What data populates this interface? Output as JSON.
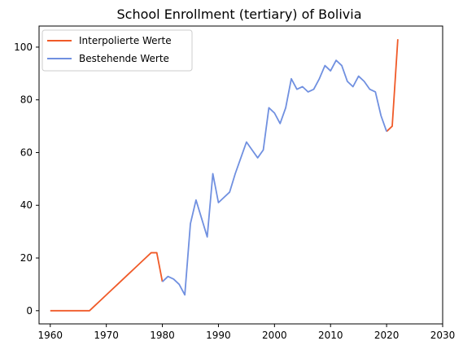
{
  "chart_data": {
    "type": "line",
    "title": "School Enrollment (tertiary) of Bolivia",
    "xlabel": "",
    "ylabel": "",
    "xlim": [
      1958,
      2030
    ],
    "ylim": [
      -5,
      108
    ],
    "xticks": [
      1960,
      1970,
      1980,
      1990,
      2000,
      2010,
      2020,
      2030
    ],
    "yticks": [
      0,
      20,
      40,
      60,
      80,
      100
    ],
    "grid": false,
    "legend_position": "top-left",
    "series": [
      {
        "name": "Interpolierte Werte",
        "color": "#f05a28",
        "x": [
          1960,
          1961,
          1962,
          1963,
          1964,
          1965,
          1966,
          1967,
          1968,
          1969,
          1970,
          1971,
          1972,
          1973,
          1974,
          1975,
          1976,
          1977,
          1978,
          1979,
          1980,
          2020,
          2021,
          2022
        ],
        "y": [
          0,
          0,
          0,
          0,
          0,
          0,
          0,
          0,
          2,
          4,
          6,
          8,
          10,
          12,
          14,
          16,
          18,
          20,
          22,
          22,
          11,
          68,
          70,
          103
        ]
      },
      {
        "name": "Bestehende Werte",
        "color": "#7090e0",
        "x": [
          1980,
          1981,
          1982,
          1983,
          1984,
          1985,
          1986,
          1987,
          1988,
          1989,
          1990,
          1991,
          1992,
          1993,
          1994,
          1995,
          1996,
          1997,
          1998,
          1999,
          2000,
          2001,
          2002,
          2003,
          2004,
          2005,
          2006,
          2007,
          2008,
          2009,
          2010,
          2011,
          2012,
          2013,
          2014,
          2015,
          2016,
          2017,
          2018,
          2019,
          2020
        ],
        "y": [
          11,
          13,
          12,
          10,
          6,
          33,
          42,
          35,
          28,
          52,
          41,
          43,
          45,
          52,
          58,
          64,
          61,
          58,
          61,
          77,
          75,
          71,
          77,
          88,
          84,
          85,
          83,
          84,
          88,
          93,
          91,
          95,
          93,
          87,
          85,
          89,
          87,
          84,
          83,
          74,
          68
        ]
      }
    ]
  }
}
